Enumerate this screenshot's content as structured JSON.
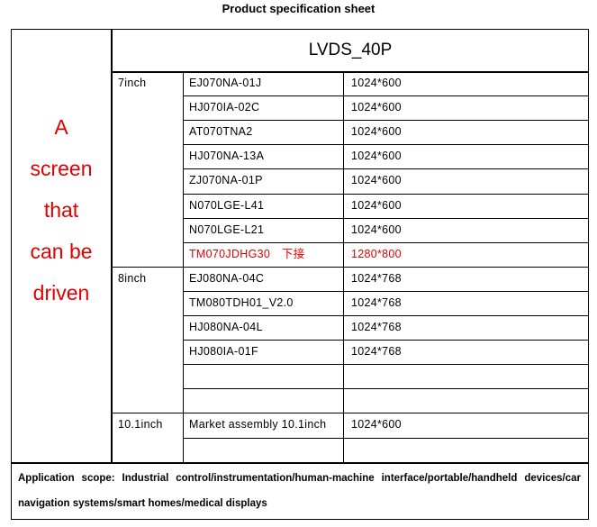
{
  "title": "Product specification sheet",
  "left_label": [
    "A",
    "screen",
    "that",
    "can be",
    "driven"
  ],
  "interface_header": "LVDS_40P",
  "groups": [
    {
      "size": "7inch",
      "rows": [
        {
          "model": "EJ070NA-01J",
          "resolution": "1024*600"
        },
        {
          "model": "HJ070IA-02C",
          "resolution": "1024*600"
        },
        {
          "model": "AT070TNA2",
          "resolution": "1024*600"
        },
        {
          "model": "HJ070NA-13A",
          "resolution": "1024*600"
        },
        {
          "model": "ZJ070NA-01P",
          "resolution": "1024*600"
        },
        {
          "model": "N070LGE-L41",
          "resolution": "1024*600"
        },
        {
          "model": "N070LGE-L21",
          "resolution": "1024*600"
        },
        {
          "model": "TM070JDHG30　下接",
          "resolution": "1280*800",
          "highlight": true
        }
      ]
    },
    {
      "size": "8inch",
      "rows": [
        {
          "model": "EJ080NA-04C",
          "resolution": "1024*768"
        },
        {
          "model": "TM080TDH01_V2.0",
          "resolution": "1024*768"
        },
        {
          "model": "HJ080NA-04L",
          "resolution": "1024*768"
        },
        {
          "model": "HJ080IA-01F",
          "resolution": "1024*768"
        },
        {
          "model": "",
          "resolution": ""
        },
        {
          "model": "",
          "resolution": ""
        }
      ]
    },
    {
      "size": "10.1inch",
      "rows": [
        {
          "model": "Market assembly 10.1inch",
          "resolution": "1024*600"
        },
        {
          "model": "",
          "resolution": ""
        }
      ]
    }
  ],
  "application_scope": "Application scope: Industrial control/instrumentation/human-machine interface/portable/handheld devices/car navigation systems/smart homes/medical displays",
  "colors": {
    "highlight": "#e00000",
    "border": "#000000"
  }
}
